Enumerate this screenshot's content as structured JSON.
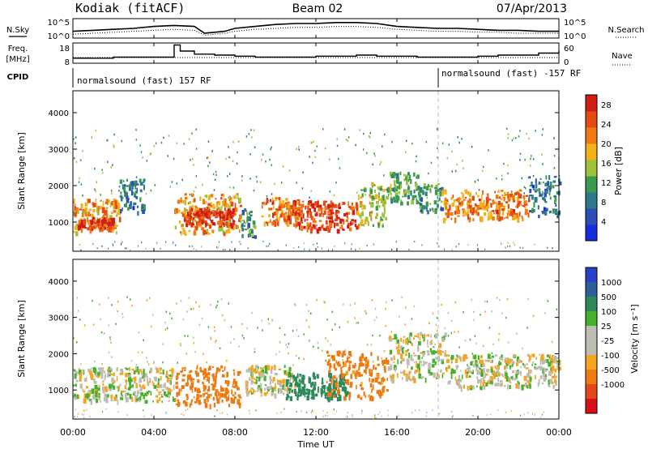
{
  "header": {
    "station": "Kodiak (fitACF)",
    "beam": "Beam 02",
    "date": "07/Apr/2013"
  },
  "side_labels": {
    "nsky": "N.Sky",
    "freq": "Freq.",
    "mhz": "[MHz]",
    "cpid": "CPID",
    "nsearch": "N.Search",
    "nave": "Nave"
  },
  "cpid_strip": {
    "segments": [
      "normalsound (fast) 157 RF",
      "normalsound (fast) -157 RF"
    ]
  },
  "colors": {
    "power_scale": [
      "#1a2bdc",
      "#2b4fb4",
      "#2f7a8a",
      "#3b9a52",
      "#9cc43a",
      "#f4b21a",
      "#f07a12",
      "#e44a12",
      "#d21c14"
    ],
    "velocity_scale": [
      "#2b3fc8",
      "#2d5f9a",
      "#2e8a5a",
      "#45b02c",
      "#bdbdb2",
      "#bdbdb2",
      "#f5a51e",
      "#ee7a12",
      "#e4481a",
      "#d8101a"
    ]
  },
  "chart_data": [
    {
      "type": "line",
      "name": "noise-panel",
      "left_label": "N.Sky",
      "right_label": "N.Search",
      "left_ticks": [
        "10^5",
        "10^0"
      ],
      "right_ticks": [
        "10^5",
        "10^0"
      ],
      "x_range_hours": [
        0,
        24
      ],
      "series": [
        {
          "name": "N.Sky",
          "x": [
            0,
            1,
            2,
            3,
            4,
            5,
            6,
            6.5,
            7,
            7.5,
            8,
            9,
            10,
            11,
            12,
            13,
            14,
            15,
            16,
            17,
            18,
            19,
            20,
            21,
            22,
            23,
            24
          ],
          "y": [
            0.35,
            0.4,
            0.45,
            0.5,
            0.6,
            0.65,
            0.6,
            0.25,
            0.3,
            0.35,
            0.5,
            0.6,
            0.7,
            0.75,
            0.75,
            0.8,
            0.8,
            0.75,
            0.6,
            0.55,
            0.5,
            0.5,
            0.45,
            0.4,
            0.4,
            0.35,
            0.35
          ]
        },
        {
          "name": "N.Search",
          "x": [
            0,
            1,
            2,
            3,
            4,
            5,
            6,
            6.5,
            7,
            7.5,
            8,
            9,
            10,
            11,
            12,
            13,
            14,
            15,
            16,
            17,
            18,
            19,
            20,
            21,
            22,
            23,
            24
          ],
          "y": [
            0.2,
            0.25,
            0.3,
            0.35,
            0.4,
            0.45,
            0.4,
            0.15,
            0.2,
            0.25,
            0.35,
            0.45,
            0.5,
            0.55,
            0.55,
            0.6,
            0.6,
            0.55,
            0.45,
            0.4,
            0.35,
            0.35,
            0.3,
            0.3,
            0.25,
            0.25,
            0.25
          ]
        }
      ]
    },
    {
      "type": "line",
      "name": "frequency-panel",
      "left_ticks": [
        "18",
        "8"
      ],
      "right_ticks": [
        "60",
        "0"
      ],
      "x_range_hours": [
        0,
        24
      ],
      "series": [
        {
          "name": "Freq",
          "x": [
            0,
            1,
            2,
            3,
            4,
            4.7,
            5,
            5.3,
            6,
            7,
            8,
            9,
            10,
            11,
            12,
            13,
            14,
            15,
            16,
            17,
            18,
            19,
            20,
            21,
            22,
            23,
            24
          ],
          "y": [
            10.5,
            10.5,
            11,
            11,
            11,
            11,
            17,
            14,
            12.5,
            12,
            11.5,
            11,
            11,
            11,
            11.5,
            11.5,
            12,
            11.5,
            11.5,
            11,
            11,
            11,
            11.5,
            12,
            12,
            13,
            14
          ]
        },
        {
          "name": "Nave",
          "x": [
            0,
            24
          ],
          "y": [
            20,
            20
          ]
        }
      ]
    },
    {
      "type": "heatmap",
      "name": "power-panel",
      "ylabel": "Slant Range [km]",
      "y_ticks": [
        "1000",
        "2000",
        "3000",
        "4000"
      ],
      "ylim": [
        200,
        4600
      ],
      "colorbar_label": "Power [dB]",
      "colorbar_ticks": [
        "4",
        "8",
        "12",
        "16",
        "20",
        "24",
        "28"
      ],
      "colorbar_range": [
        0,
        30
      ],
      "scatter_bands": [
        {
          "t0": 0,
          "t1": 2.3,
          "r0": 750,
          "r1": 1650,
          "level": 20
        },
        {
          "t0": 0.2,
          "t1": 2.0,
          "r0": 850,
          "r1": 1150,
          "level": 26
        },
        {
          "t0": 2.3,
          "t1": 3.5,
          "r0": 1300,
          "r1": 2200,
          "level": 8
        },
        {
          "t0": 5.0,
          "t1": 8.3,
          "r0": 700,
          "r1": 1800,
          "level": 20
        },
        {
          "t0": 5.5,
          "t1": 8.0,
          "r0": 950,
          "r1": 1400,
          "level": 27
        },
        {
          "t0": 8.3,
          "t1": 9.0,
          "r0": 600,
          "r1": 1400,
          "level": 10
        },
        {
          "t0": 9.3,
          "t1": 11.2,
          "r0": 950,
          "r1": 1700,
          "level": 22
        },
        {
          "t0": 10.8,
          "t1": 14.0,
          "r0": 800,
          "r1": 1600,
          "level": 26
        },
        {
          "t0": 14.0,
          "t1": 15.6,
          "r0": 900,
          "r1": 2100,
          "level": 16
        },
        {
          "t0": 15.6,
          "t1": 17.0,
          "r0": 1500,
          "r1": 2400,
          "level": 12
        },
        {
          "t0": 17.0,
          "t1": 18.2,
          "r0": 1300,
          "r1": 2100,
          "level": 10
        },
        {
          "t0": 18.2,
          "t1": 22.5,
          "r0": 1100,
          "r1": 1900,
          "level": 22
        },
        {
          "t0": 22.5,
          "t1": 24,
          "r0": 1200,
          "r1": 2300,
          "level": 8
        }
      ]
    },
    {
      "type": "heatmap",
      "name": "velocity-panel",
      "xlabel": "Time UT",
      "ylabel": "Slant Range [km]",
      "y_ticks": [
        "1000",
        "2000",
        "3000",
        "4000"
      ],
      "ylim": [
        200,
        4600
      ],
      "x_ticks": [
        "00:00",
        "04:00",
        "08:00",
        "12:00",
        "16:00",
        "20:00",
        "00:00"
      ],
      "colorbar_label": "Velocity [m s⁻¹]",
      "colorbar_ticks": [
        "1000",
        "500",
        "100",
        "25",
        "-25",
        "-100",
        "-500",
        "-1000"
      ],
      "scatter_bands": [
        {
          "t0": 0,
          "t1": 5.0,
          "r0": 700,
          "r1": 1650,
          "level": 0
        },
        {
          "t0": 5.0,
          "t1": 8.2,
          "r0": 600,
          "r1": 1700,
          "level": -300
        },
        {
          "t0": 8.5,
          "t1": 11.0,
          "r0": 900,
          "r1": 1700,
          "level": 0
        },
        {
          "t0": 10.5,
          "t1": 13.5,
          "r0": 800,
          "r1": 1500,
          "level": 200
        },
        {
          "t0": 12.5,
          "t1": 15.5,
          "r0": 800,
          "r1": 2100,
          "level": -150
        },
        {
          "t0": 15.5,
          "t1": 18.5,
          "r0": 1300,
          "r1": 2600,
          "level": 0
        },
        {
          "t0": 18.5,
          "t1": 24,
          "r0": 1100,
          "r1": 2000,
          "level": 0
        }
      ]
    }
  ]
}
